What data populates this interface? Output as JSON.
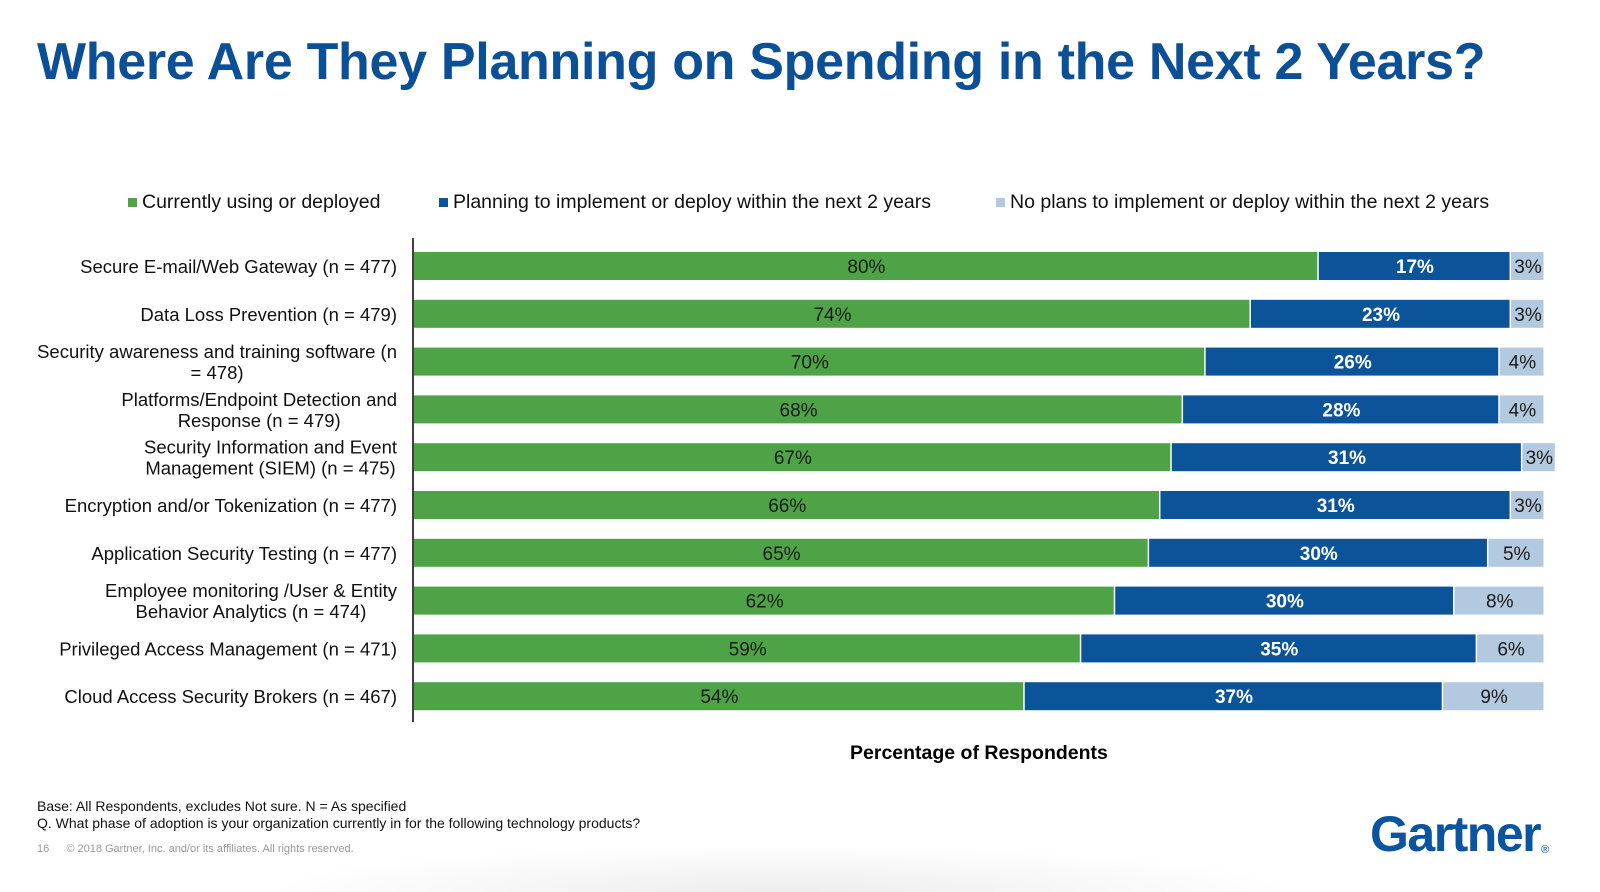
{
  "slide": {
    "title": "Where Are They Planning on Spending in the Next 2 Years?",
    "page_number": "16",
    "copyright": "© 2018 Gartner, Inc. and/or its affiliates. All rights reserved.",
    "base_note": "Base: All Respondents, excludes Not sure. N = As specified",
    "question_note": "Q. What phase of adoption is your organization currently in for the following technology products?",
    "logo_text": "Gartner",
    "logo_mark": "®"
  },
  "chart_data": {
    "type": "bar",
    "orientation": "horizontal",
    "stacked": true,
    "title": "Where Are They Planning on Spending in the Next 2 Years?",
    "xlabel": "Percentage of Respondents",
    "ylabel": "",
    "xlim": [
      0,
      100
    ],
    "grid": false,
    "legend_position": "top",
    "categories": [
      "Secure E-mail/Web Gateway (n = 477)",
      "Data Loss Prevention (n = 479)",
      "Security awareness and training software (n = 478)",
      "Platforms/Endpoint Detection and Response (n = 479)",
      "Security Information and Event Management (SIEM) (n = 475)",
      "Encryption and/or Tokenization (n = 477)",
      "Application Security Testing (n = 477)",
      "Employee monitoring /User & Entity Behavior Analytics (n = 474)",
      "Privileged Access Management (n = 471)",
      "Cloud Access Security Brokers (n = 467)"
    ],
    "category_lines": [
      [
        "Secure E-mail/Web Gateway (n = 477)"
      ],
      [
        "Data Loss Prevention (n = 479)"
      ],
      [
        "Security awareness and training software (n",
        "= 478)"
      ],
      [
        "Platforms/Endpoint Detection and",
        "Response (n = 479)"
      ],
      [
        "Security Information and Event",
        "Management (SIEM) (n = 475)"
      ],
      [
        "Encryption and/or Tokenization (n = 477)"
      ],
      [
        "Application Security Testing (n = 477)"
      ],
      [
        "Employee monitoring /User & Entity",
        "Behavior Analytics (n = 474)"
      ],
      [
        "Privileged Access Management (n = 471)"
      ],
      [
        "Cloud Access Security Brokers (n = 467)"
      ]
    ],
    "series": [
      {
        "name": "Currently using or deployed",
        "color": "#4ea346",
        "label_color": "#1a1a1a",
        "values": [
          80,
          74,
          70,
          68,
          67,
          66,
          65,
          62,
          59,
          54
        ]
      },
      {
        "name": "Planning to implement or deploy within the next 2 years",
        "color": "#0b5499",
        "label_color": "#ffffff",
        "values": [
          17,
          23,
          26,
          28,
          31,
          31,
          30,
          30,
          35,
          37
        ]
      },
      {
        "name": "No plans to implement or deploy within the next 2 years",
        "color": "#b3c9e0",
        "label_color": "#1a1a1a",
        "values": [
          3,
          3,
          4,
          4,
          3,
          3,
          5,
          8,
          6,
          9
        ]
      }
    ],
    "value_suffix": "%"
  }
}
